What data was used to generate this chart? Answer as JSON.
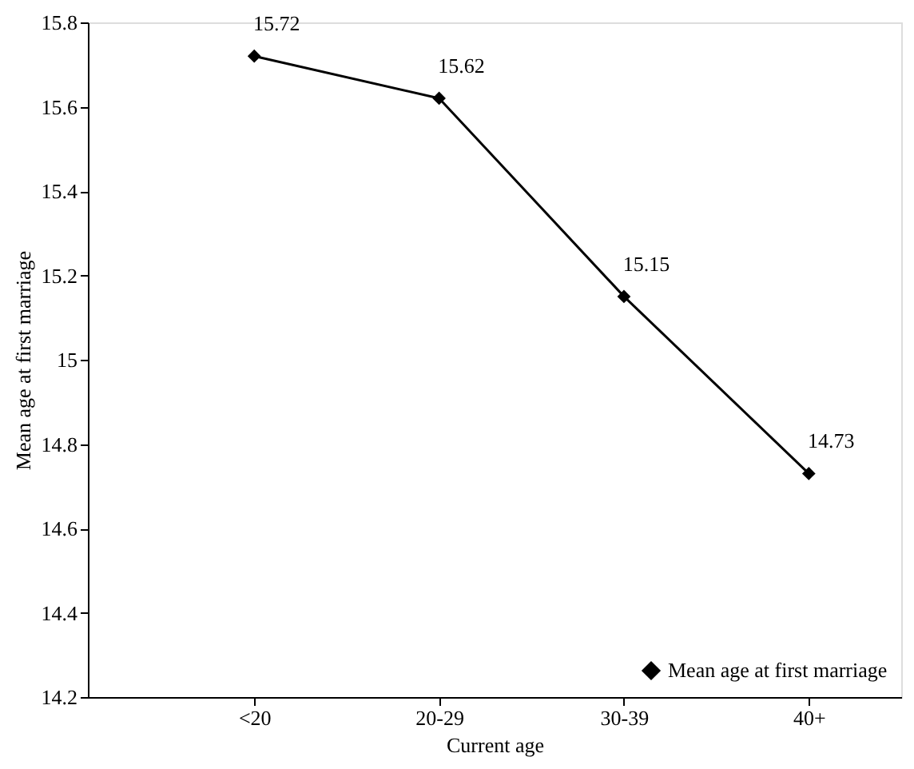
{
  "chart_data": {
    "type": "line",
    "xlabel": "Current age",
    "ylabel": "Mean age at first marriage",
    "categories": [
      "<20",
      "20-29",
      "30-39",
      "40+"
    ],
    "series": [
      {
        "name": "Mean age at first marriage",
        "color": "#000000",
        "values": [
          15.72,
          15.62,
          15.15,
          14.73
        ]
      }
    ],
    "ylim": [
      14.2,
      15.8
    ],
    "yticks": [
      14.2,
      14.4,
      14.6,
      14.8,
      15,
      15.2,
      15.4,
      15.6,
      15.8
    ],
    "data_labels": true,
    "legend": "bottom right",
    "grid": false,
    "marker": "diamond",
    "line_style": "solid"
  }
}
